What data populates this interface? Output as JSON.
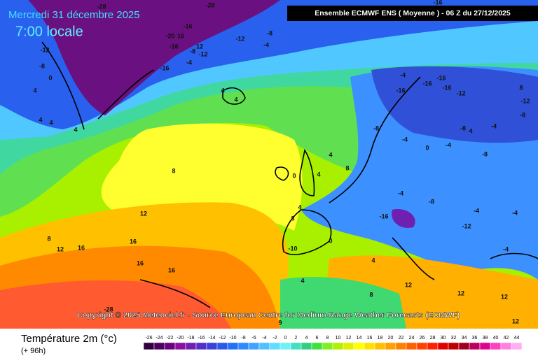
{
  "header": {
    "date": "Mercredi 31 décembre 2025",
    "time": "7:00 locale",
    "model": "Ensemble ECMWF ENS  ( Moyenne )  - 06 Z du 27/12/2025"
  },
  "copyright": "Copyright © 2025 Meteociel.fr - Source European Centre for Medium-Range Weather Forecasts (ECMWF)",
  "footer": {
    "title": "Température 2m (°c)",
    "subtitle": "(+ 96h)"
  },
  "scale": [
    {
      "value": -26,
      "color": "#300040"
    },
    {
      "value": -24,
      "color": "#4c0060"
    },
    {
      "value": -22,
      "color": "#6a0080"
    },
    {
      "value": -20,
      "color": "#8a10a0"
    },
    {
      "value": -18,
      "color": "#7020b0"
    },
    {
      "value": -16,
      "color": "#5030c8"
    },
    {
      "value": -14,
      "color": "#3a40d8"
    },
    {
      "value": -12,
      "color": "#2a58e8"
    },
    {
      "value": -10,
      "color": "#2070f8"
    },
    {
      "value": -8,
      "color": "#3088ff"
    },
    {
      "value": -6,
      "color": "#40a4ff"
    },
    {
      "value": -4,
      "color": "#50c0ff"
    },
    {
      "value": -2,
      "color": "#60dcff"
    },
    {
      "value": 0,
      "color": "#70f0f0"
    },
    {
      "value": 2,
      "color": "#40e0c0"
    },
    {
      "value": 4,
      "color": "#30d080"
    },
    {
      "value": 6,
      "color": "#40e040"
    },
    {
      "value": 8,
      "color": "#80f020"
    },
    {
      "value": 10,
      "color": "#b0f000"
    },
    {
      "value": 12,
      "color": "#e0f000"
    },
    {
      "value": 14,
      "color": "#ffff00"
    },
    {
      "value": 16,
      "color": "#ffe000"
    },
    {
      "value": 18,
      "color": "#ffc000"
    },
    {
      "value": 20,
      "color": "#ffa000"
    },
    {
      "value": 22,
      "color": "#ff8000"
    },
    {
      "value": 24,
      "color": "#ff6000"
    },
    {
      "value": 26,
      "color": "#ff4000"
    },
    {
      "value": 28,
      "color": "#ff2000"
    },
    {
      "value": 30,
      "color": "#e00000"
    },
    {
      "value": 32,
      "color": "#c00000"
    },
    {
      "value": 34,
      "color": "#a00020"
    },
    {
      "value": 36,
      "color": "#c00060"
    },
    {
      "value": 38,
      "color": "#e00090"
    },
    {
      "value": 40,
      "color": "#ff40c0"
    },
    {
      "value": 42,
      "color": "#ff80e0"
    },
    {
      "value": 44,
      "color": "#ffb0f0"
    }
  ],
  "map_labels": [
    -28,
    -28,
    -16,
    -16,
    -20,
    16,
    -12,
    -8,
    -4,
    -16,
    -12,
    12,
    -12,
    -8,
    -4,
    -16,
    -8,
    0,
    -4,
    -16,
    -16,
    -16,
    -16,
    -12,
    8,
    -12,
    4,
    4,
    4,
    4,
    4,
    4,
    -8,
    -8,
    -4,
    -8,
    4,
    -4,
    0,
    -4,
    -8,
    8,
    8,
    4,
    4,
    0,
    12,
    8,
    12,
    16,
    16,
    16,
    16,
    8,
    4,
    -4,
    -8,
    -16,
    -12,
    -4,
    -4,
    -4,
    -10,
    0,
    12,
    4,
    8,
    12,
    12,
    4,
    12,
    -28,
    9
  ]
}
